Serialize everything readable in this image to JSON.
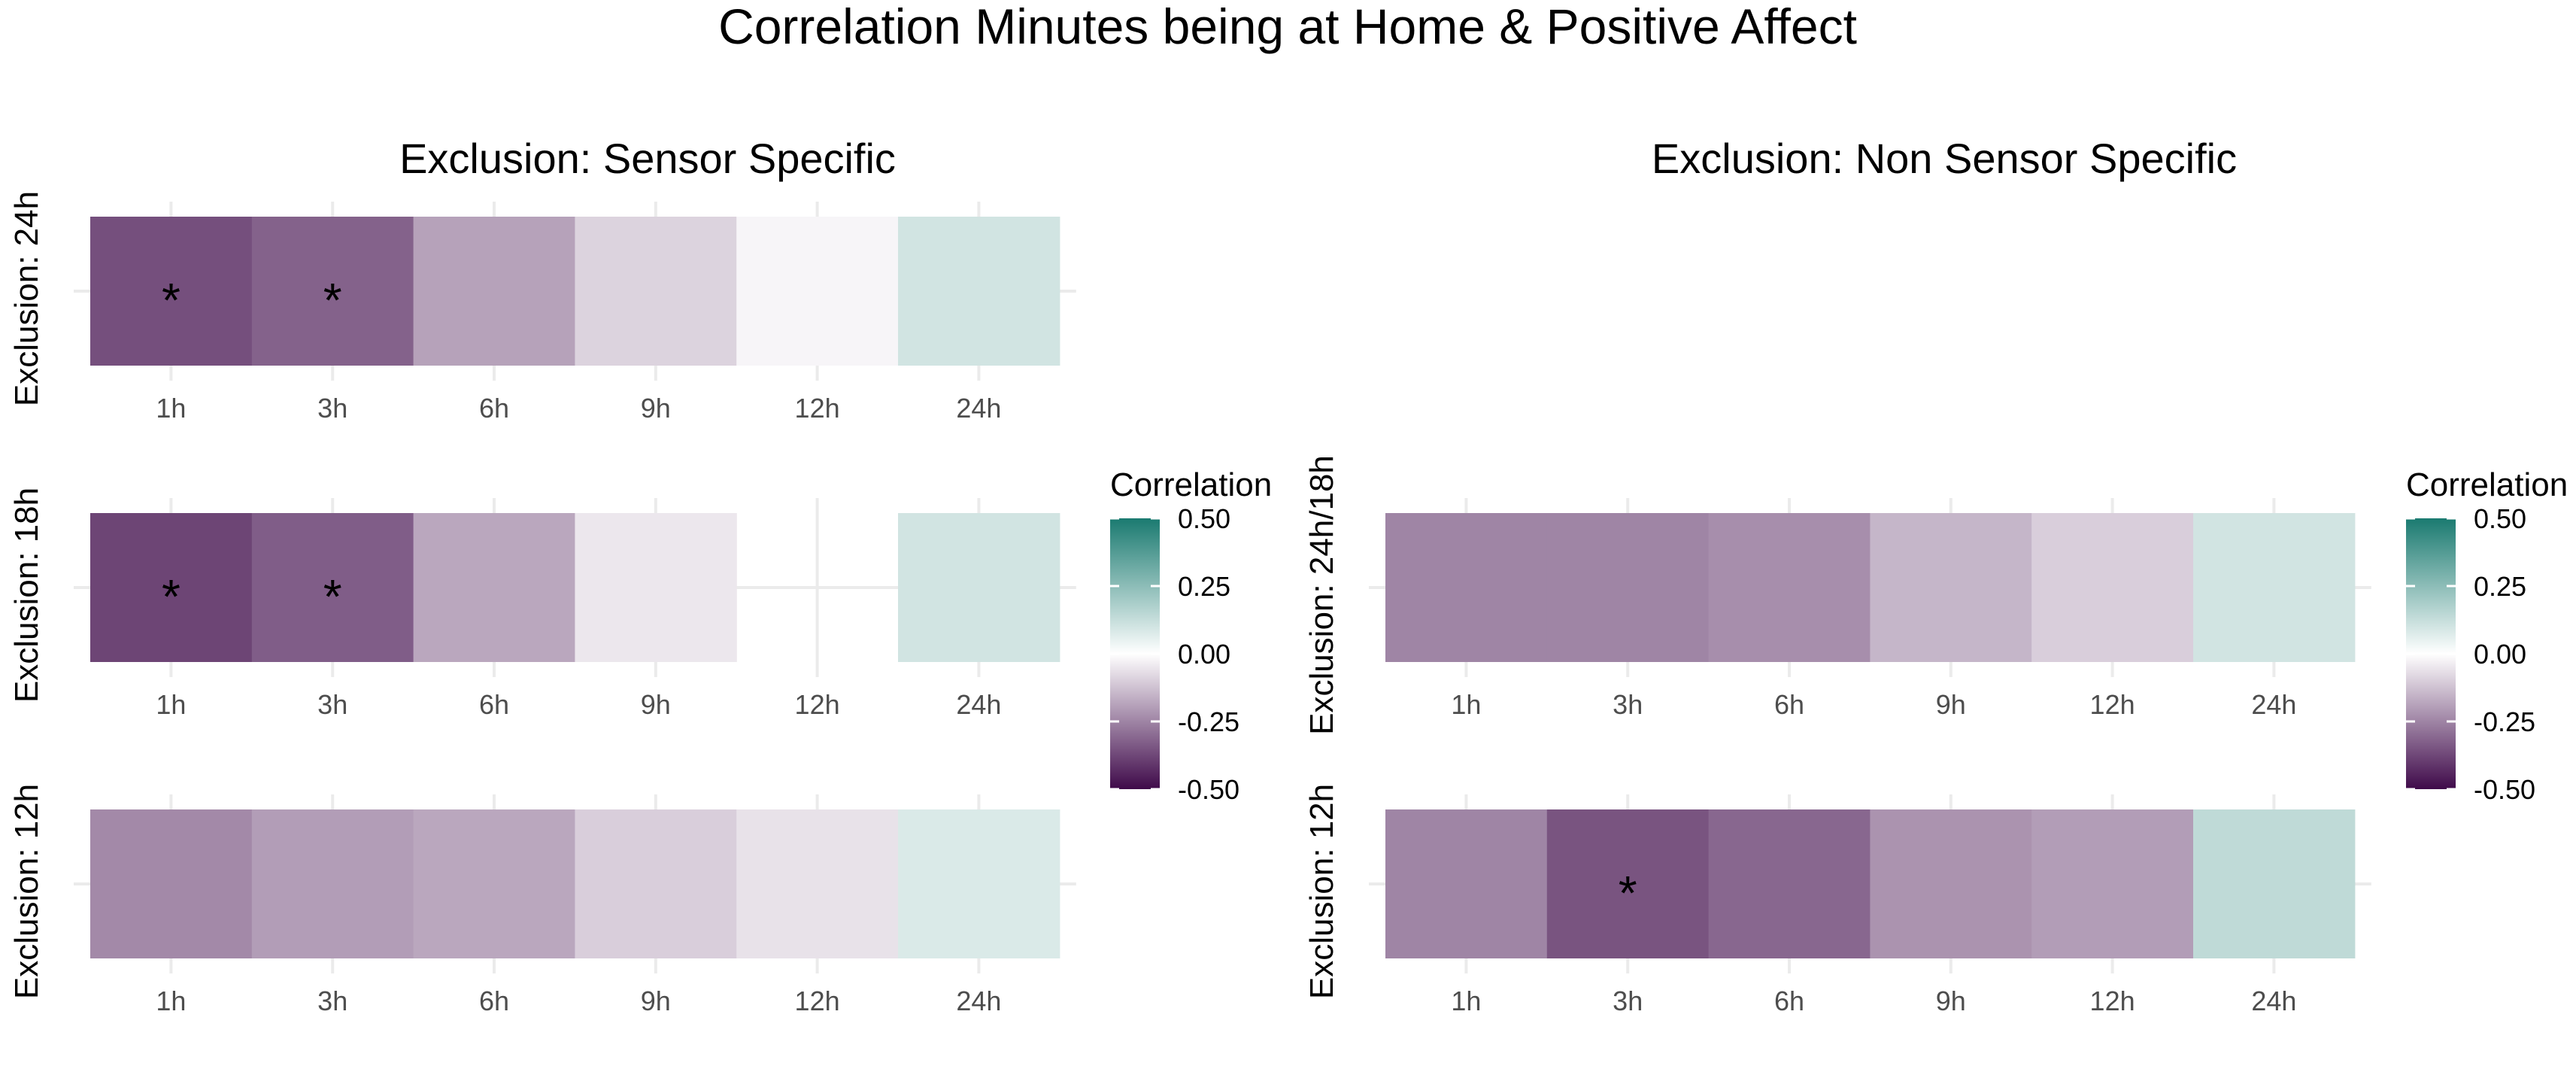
{
  "title": "Correlation Minutes being at Home & Positive Affect",
  "colors": {
    "low": "#3f0a4a",
    "mid": "#ffffff",
    "high": "#1a7a70",
    "gridline": "#ebebeb",
    "tick_label": "#4d4d4d"
  },
  "chart_data": [
    {
      "type": "heatmap",
      "title": "Exclusion: Sensor Specific",
      "x": [
        "1h",
        "3h",
        "6h",
        "9h",
        "12h",
        "24h"
      ],
      "rows": [
        {
          "label": "Exclusion: 24h",
          "values": [
            -0.36,
            -0.32,
            -0.19,
            -0.09,
            -0.02,
            0.1
          ],
          "significant": [
            true,
            true,
            false,
            false,
            false,
            false
          ]
        },
        {
          "label": "Exclusion: 18h",
          "values": [
            -0.38,
            -0.33,
            -0.18,
            -0.05,
            null,
            0.1
          ],
          "significant": [
            true,
            true,
            false,
            false,
            false,
            false
          ]
        },
        {
          "label": "Exclusion: 12h",
          "values": [
            -0.24,
            -0.2,
            -0.18,
            -0.1,
            -0.06,
            0.08
          ],
          "significant": [
            false,
            false,
            false,
            false,
            false,
            false
          ]
        }
      ],
      "legend": {
        "title": "Correlation",
        "ticks": [
          0.5,
          0.25,
          0.0,
          -0.25,
          -0.5
        ],
        "tick_labels": [
          "0.50",
          "0.25",
          "0.00",
          "-0.25",
          "-0.50"
        ],
        "range": [
          -0.5,
          0.5
        ]
      }
    },
    {
      "type": "heatmap",
      "title": "Exclusion: Non Sensor Specific",
      "x": [
        "1h",
        "3h",
        "6h",
        "9h",
        "12h",
        "24h"
      ],
      "rows": [
        {
          "label": "Exclusion: 24h/18h",
          "values": [
            -0.25,
            -0.25,
            -0.23,
            -0.15,
            -0.1,
            0.1
          ],
          "significant": [
            false,
            false,
            false,
            false,
            false,
            false
          ]
        },
        {
          "label": "Exclusion: 12h",
          "values": [
            -0.25,
            -0.35,
            -0.31,
            -0.22,
            -0.2,
            0.14
          ],
          "significant": [
            false,
            true,
            false,
            false,
            false,
            false
          ]
        }
      ],
      "legend": {
        "title": "Correlation",
        "ticks": [
          0.5,
          0.25,
          0.0,
          -0.25,
          -0.5
        ],
        "tick_labels": [
          "0.50",
          "0.25",
          "0.00",
          "-0.25",
          "-0.50"
        ],
        "range": [
          -0.5,
          0.5
        ]
      }
    }
  ]
}
